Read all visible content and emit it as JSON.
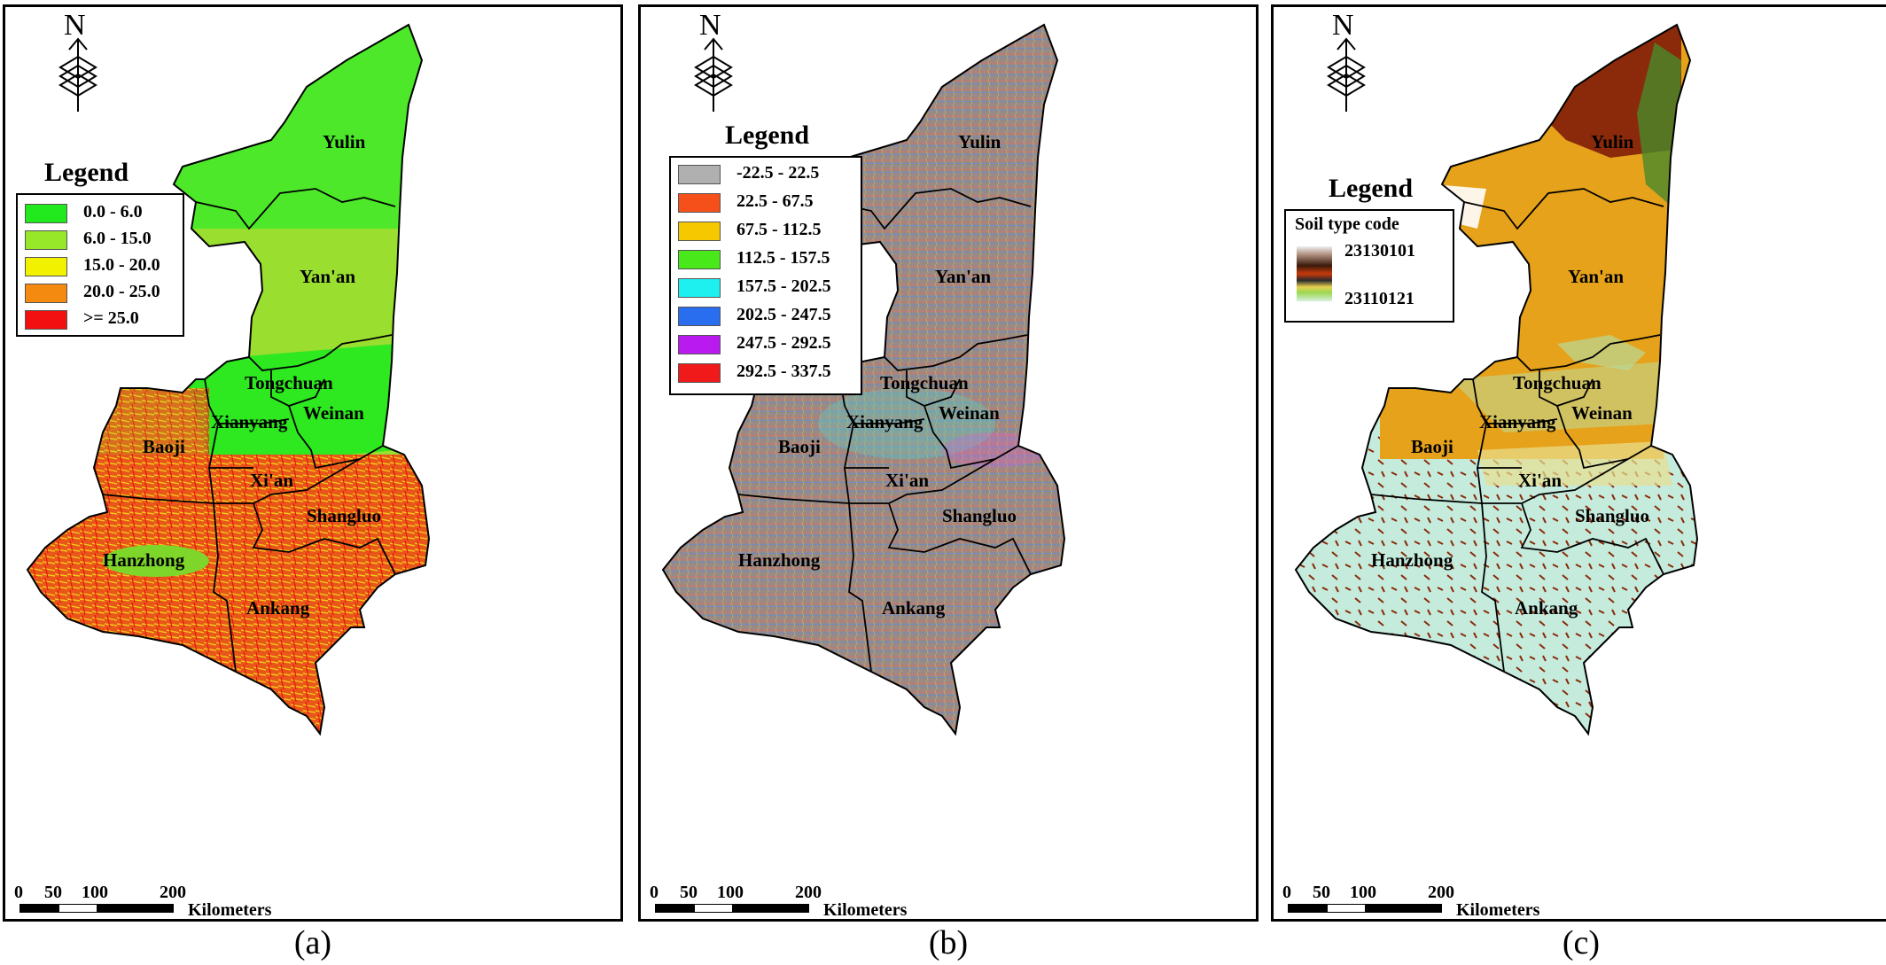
{
  "panels": {
    "a": {
      "caption": "(a)",
      "legend_title": "Legend",
      "legend": [
        {
          "label": "0.0 - 6.0",
          "color": "#22e81e"
        },
        {
          "label": "6.0 - 15.0",
          "color": "#98e82a"
        },
        {
          "label": "15.0 - 20.0",
          "color": "#f2f200"
        },
        {
          "label": "20.0 - 25.0",
          "color": "#f58a10"
        },
        {
          "label": ">= 25.0",
          "color": "#f21010"
        }
      ]
    },
    "b": {
      "caption": "(b)",
      "legend_title": "Legend",
      "legend": [
        {
          "label": "-22.5 - 22.5",
          "color": "#b0b0b0"
        },
        {
          "label": "22.5 - 67.5",
          "color": "#f5501a"
        },
        {
          "label": "67.5 - 112.5",
          "color": "#f5c800"
        },
        {
          "label": "112.5 - 157.5",
          "color": "#49e81a"
        },
        {
          "label": "157.5 - 202.5",
          "color": "#1ef0f0"
        },
        {
          "label": "202.5 - 247.5",
          "color": "#2a6ef0"
        },
        {
          "label": "247.5 - 292.5",
          "color": "#b81af0"
        },
        {
          "label": "292.5 - 337.5",
          "color": "#f01a1a"
        }
      ]
    },
    "c": {
      "caption": "(c)",
      "legend_title": "Legend",
      "legend_subtitle": "Soil type code",
      "legend_high": "23130101",
      "legend_low": "23110121"
    }
  },
  "north_label": "N",
  "cities": [
    "Yulin",
    "Yan'an",
    "Tongchuan",
    "Weinan",
    "Xianyang",
    "Baoji",
    "Xi'an",
    "Shangluo",
    "Hanzhong",
    "Ankang"
  ],
  "scale": {
    "ticks": [
      "0",
      "50",
      "100",
      "200"
    ],
    "unit": "Kilometers"
  },
  "colors": {
    "a_north": "#4ee82a",
    "a_center": "#9adf30",
    "a_south": "#e85a10",
    "b_fill": "#9a8a86",
    "c_north": "#e6a21a",
    "c_south": "#c4ebdc",
    "c_dark": "#8b2a0a"
  }
}
